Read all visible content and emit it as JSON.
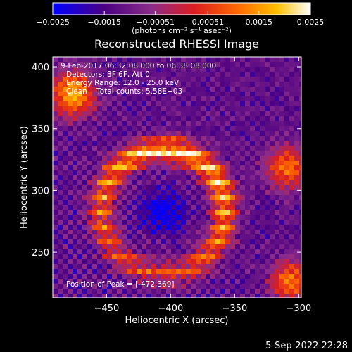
{
  "chart_data": {
    "type": "heatmap",
    "title": "Reconstructed RHESSI Image",
    "xlabel": "Heliocentric X (arcsec)",
    "ylabel": "Heliocentric Y (arcsec)",
    "xlim": [
      -492,
      -298
    ],
    "ylim": [
      213,
      408
    ],
    "x_ticks": [
      -450,
      -400,
      -350,
      -300
    ],
    "y_ticks": [
      250,
      300,
      350,
      400
    ],
    "x_tick_labels": [
      "−450",
      "−400",
      "−350",
      "−300"
    ],
    "y_tick_labels": [
      "250",
      "300",
      "350",
      "400"
    ],
    "colorbar": {
      "range": [
        -0.0025,
        0.0025
      ],
      "tick_values": [
        -0.0025,
        -0.0015,
        -0.00051,
        0.00051,
        0.0015,
        0.0025
      ],
      "tick_labels": [
        "−0.0025",
        "−0.0015",
        "−0.00051",
        "0.00051",
        "0.0015",
        "0.0025"
      ],
      "units_label": "(photons cm⁻² s⁻¹ asec⁻²)"
    },
    "annotations": {
      "line1": "9-Feb-2017 06:32:08.000 to 06:38:08.000",
      "line2": "Detectors: 3F 6F, Att 0",
      "line3": "Energy Range: 12.0 - 25.0 keV",
      "line4": "Clean    Total counts: 5.58E+03",
      "peak": "Position of Peak = [-472,369]"
    },
    "image_peak": [
      -472,
      369
    ],
    "grid": false,
    "legend": "none",
    "colormap": [
      "#0000ff",
      "#4b0082",
      "#8b2c8b",
      "#dc1e1e",
      "#ff6a00",
      "#ffc000",
      "#ffffff"
    ]
  },
  "footer": {
    "date": "5-Sep-2022 22:28"
  }
}
